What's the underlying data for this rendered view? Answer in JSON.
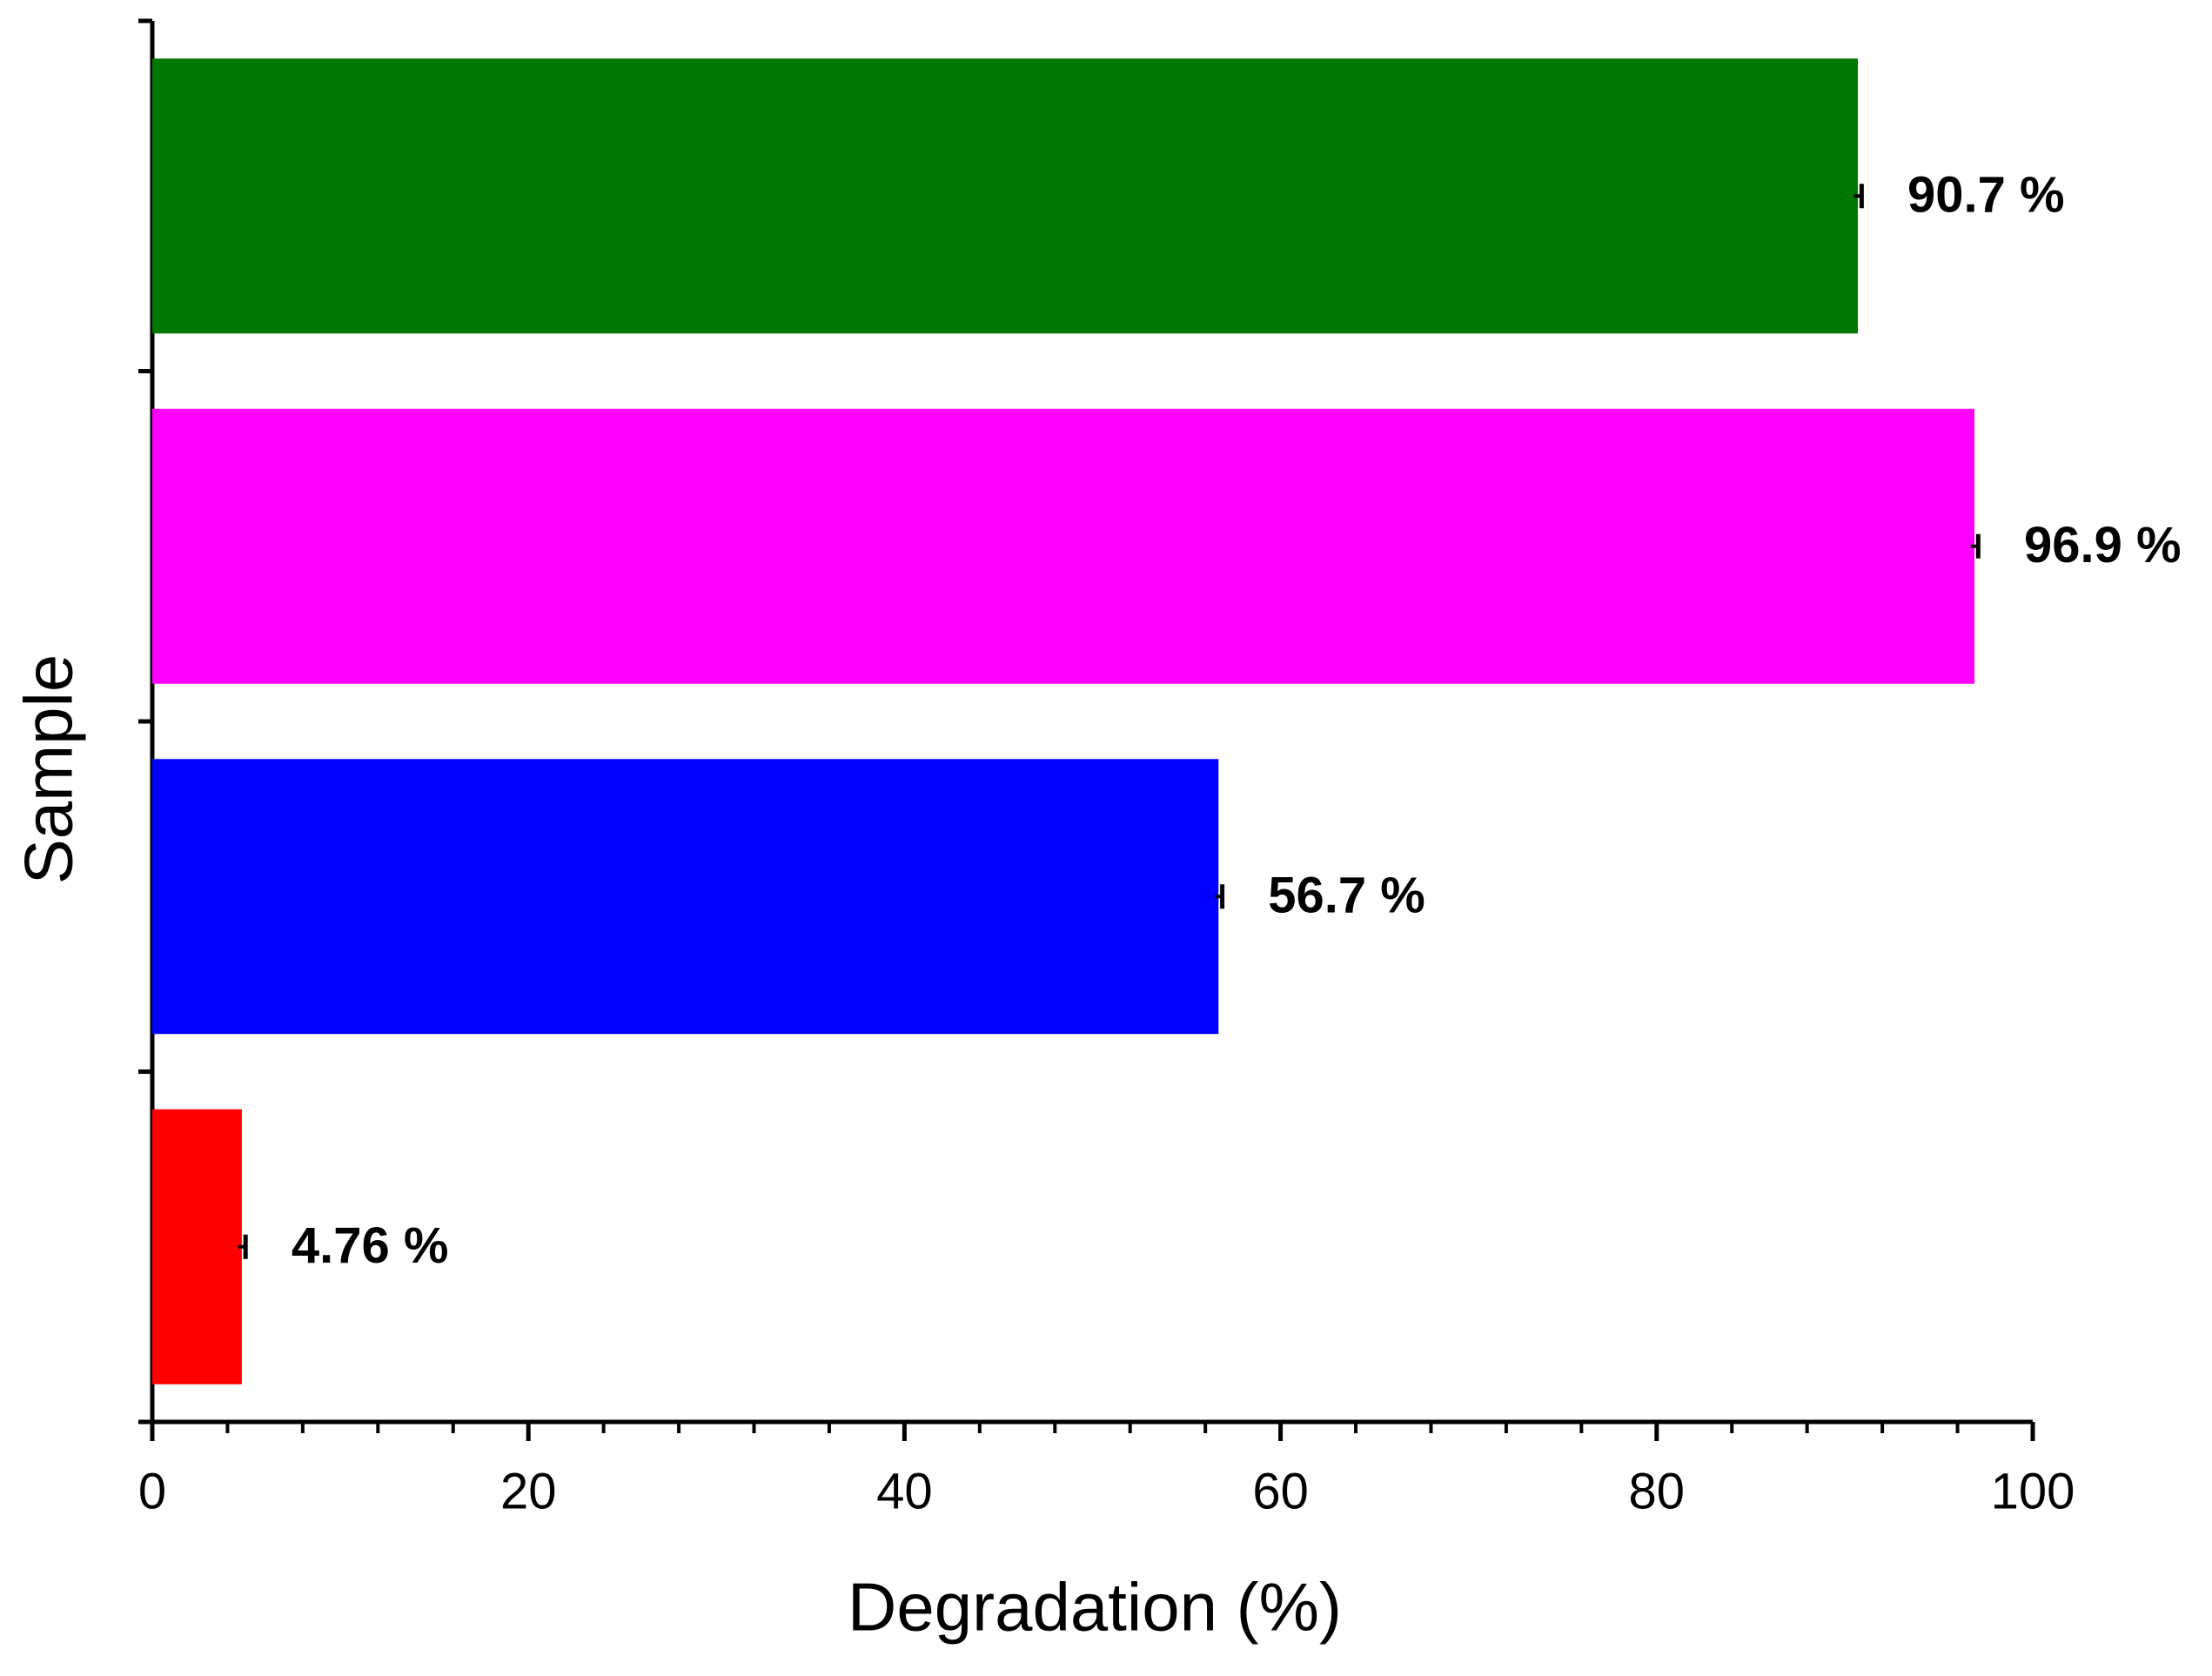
{
  "chart_data": {
    "type": "hbar",
    "x_label": "Degradation (%)",
    "y_label": "Sample",
    "categories": [
      null,
      null,
      null,
      null
    ],
    "values": [
      4.76,
      56.7,
      96.9,
      90.7
    ],
    "value_labels": [
      "4.76 %",
      "56.7 %",
      "96.9 %",
      "90.7 %"
    ],
    "errors": [
      0.2,
      0.2,
      0.2,
      0.2
    ],
    "colors": [
      "#ff0000",
      "#0000ff",
      "#ff00ff",
      "#007700"
    ],
    "xlim": [
      0,
      100
    ],
    "xticks": [
      0,
      20,
      40,
      60,
      80,
      100
    ],
    "xminor_ticks": [
      4,
      8,
      12,
      16,
      24,
      28,
      32,
      36,
      44,
      48,
      52,
      56,
      64,
      68,
      72,
      76,
      84,
      88,
      92,
      96
    ]
  }
}
